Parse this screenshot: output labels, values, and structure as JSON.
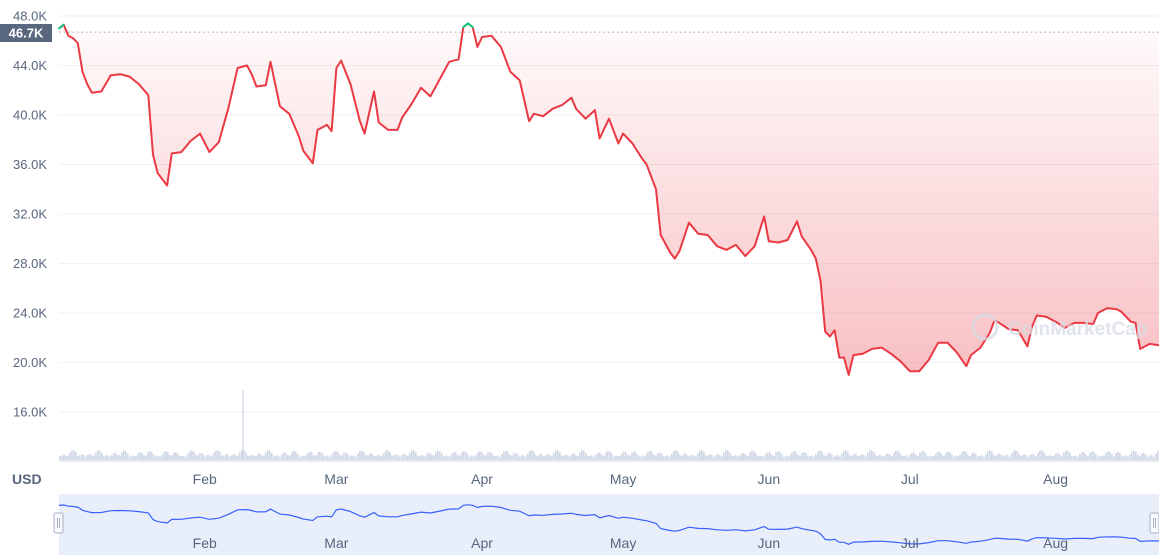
{
  "currency_label": "USD",
  "watermark": "CoinMarketCap",
  "current_price_badge": "46.7K",
  "colors": {
    "line_down": "#ea3943",
    "line_up": "#16c784",
    "area_fill": "#ea3943",
    "grid": "#eff2f5",
    "axis_text": "#58667e",
    "volume": "#cfd6e4",
    "navigator_bg": "#e9eefb",
    "navigator_line": "#3861fb",
    "badge_bg": "#58667e",
    "badge_text": "#ffffff"
  },
  "chart_data": {
    "type": "area",
    "title": "",
    "ylabel": "",
    "xlabel": "",
    "ylim": [
      12000,
      48000
    ],
    "yticks": [
      16000,
      20000,
      24000,
      28000,
      32000,
      36000,
      40000,
      44000,
      48000
    ],
    "ytick_labels": [
      "16.0K",
      "20.0K",
      "24.0K",
      "28.0K",
      "32.0K",
      "36.0K",
      "40.0K",
      "44.0K",
      "48.0K"
    ],
    "x_range": [
      "2022-01-01",
      "2022-08-23"
    ],
    "xticks": [
      "2022-02-01",
      "2022-03-01",
      "2022-04-01",
      "2022-05-01",
      "2022-06-01",
      "2022-07-01",
      "2022-08-01"
    ],
    "xtick_labels": [
      "Feb",
      "Mar",
      "Apr",
      "May",
      "Jun",
      "Jul",
      "Aug"
    ],
    "reference_price": 46700,
    "series": [
      {
        "values_unit": "USD",
        "points": [
          [
            "2022-01-01",
            47000
          ],
          [
            "2022-01-02",
            47300
          ],
          [
            "2022-01-03",
            46400
          ],
          [
            "2022-01-04",
            46200
          ],
          [
            "2022-01-05",
            45800
          ],
          [
            "2022-01-06",
            43500
          ],
          [
            "2022-01-07",
            42500
          ],
          [
            "2022-01-08",
            41800
          ],
          [
            "2022-01-10",
            41900
          ],
          [
            "2022-01-12",
            43200
          ],
          [
            "2022-01-14",
            43300
          ],
          [
            "2022-01-16",
            43100
          ],
          [
            "2022-01-18",
            42500
          ],
          [
            "2022-01-20",
            41600
          ],
          [
            "2022-01-21",
            36800
          ],
          [
            "2022-01-22",
            35300
          ],
          [
            "2022-01-24",
            34300
          ],
          [
            "2022-01-25",
            36900
          ],
          [
            "2022-01-27",
            37000
          ],
          [
            "2022-01-29",
            37900
          ],
          [
            "2022-01-31",
            38500
          ],
          [
            "2022-02-02",
            37000
          ],
          [
            "2022-02-04",
            37800
          ],
          [
            "2022-02-06",
            40500
          ],
          [
            "2022-02-08",
            43800
          ],
          [
            "2022-02-10",
            44000
          ],
          [
            "2022-02-11",
            43300
          ],
          [
            "2022-02-12",
            42300
          ],
          [
            "2022-02-14",
            42400
          ],
          [
            "2022-02-15",
            44300
          ],
          [
            "2022-02-17",
            40700
          ],
          [
            "2022-02-19",
            40100
          ],
          [
            "2022-02-21",
            38300
          ],
          [
            "2022-02-22",
            37100
          ],
          [
            "2022-02-24",
            36100
          ],
          [
            "2022-02-25",
            38800
          ],
          [
            "2022-02-27",
            39200
          ],
          [
            "2022-02-28",
            38700
          ],
          [
            "2022-03-01",
            43800
          ],
          [
            "2022-03-02",
            44400
          ],
          [
            "2022-03-04",
            42500
          ],
          [
            "2022-03-06",
            39500
          ],
          [
            "2022-03-07",
            38500
          ],
          [
            "2022-03-09",
            41900
          ],
          [
            "2022-03-10",
            39400
          ],
          [
            "2022-03-12",
            38800
          ],
          [
            "2022-03-14",
            38800
          ],
          [
            "2022-03-15",
            39800
          ],
          [
            "2022-03-17",
            40900
          ],
          [
            "2022-03-19",
            42200
          ],
          [
            "2022-03-21",
            41500
          ],
          [
            "2022-03-23",
            42900
          ],
          [
            "2022-03-25",
            44300
          ],
          [
            "2022-03-27",
            44500
          ],
          [
            "2022-03-28",
            47100
          ],
          [
            "2022-03-29",
            47400
          ],
          [
            "2022-03-30",
            47100
          ],
          [
            "2022-03-31",
            45500
          ],
          [
            "2022-04-01",
            46300
          ],
          [
            "2022-04-03",
            46400
          ],
          [
            "2022-04-05",
            45500
          ],
          [
            "2022-04-07",
            43500
          ],
          [
            "2022-04-09",
            42800
          ],
          [
            "2022-04-11",
            39500
          ],
          [
            "2022-04-12",
            40100
          ],
          [
            "2022-04-14",
            39900
          ],
          [
            "2022-04-16",
            40500
          ],
          [
            "2022-04-18",
            40800
          ],
          [
            "2022-04-20",
            41400
          ],
          [
            "2022-04-21",
            40500
          ],
          [
            "2022-04-23",
            39700
          ],
          [
            "2022-04-25",
            40400
          ],
          [
            "2022-04-26",
            38100
          ],
          [
            "2022-04-28",
            39700
          ],
          [
            "2022-04-30",
            37700
          ],
          [
            "2022-05-01",
            38500
          ],
          [
            "2022-05-03",
            37700
          ],
          [
            "2022-05-05",
            36500
          ],
          [
            "2022-05-06",
            36000
          ],
          [
            "2022-05-08",
            34000
          ],
          [
            "2022-05-09",
            30300
          ],
          [
            "2022-05-11",
            28900
          ],
          [
            "2022-05-12",
            28400
          ],
          [
            "2022-05-13",
            29000
          ],
          [
            "2022-05-15",
            31300
          ],
          [
            "2022-05-17",
            30400
          ],
          [
            "2022-05-19",
            30300
          ],
          [
            "2022-05-21",
            29400
          ],
          [
            "2022-05-23",
            29100
          ],
          [
            "2022-05-25",
            29500
          ],
          [
            "2022-05-27",
            28600
          ],
          [
            "2022-05-29",
            29400
          ],
          [
            "2022-05-31",
            31800
          ],
          [
            "2022-06-01",
            29800
          ],
          [
            "2022-06-03",
            29700
          ],
          [
            "2022-06-05",
            29900
          ],
          [
            "2022-06-07",
            31400
          ],
          [
            "2022-06-08",
            30200
          ],
          [
            "2022-06-10",
            29100
          ],
          [
            "2022-06-11",
            28400
          ],
          [
            "2022-06-12",
            26600
          ],
          [
            "2022-06-13",
            22500
          ],
          [
            "2022-06-14",
            22100
          ],
          [
            "2022-06-15",
            22600
          ],
          [
            "2022-06-16",
            20400
          ],
          [
            "2022-06-17",
            20400
          ],
          [
            "2022-06-18",
            19000
          ],
          [
            "2022-06-19",
            20600
          ],
          [
            "2022-06-21",
            20700
          ],
          [
            "2022-06-23",
            21100
          ],
          [
            "2022-06-25",
            21200
          ],
          [
            "2022-06-27",
            20700
          ],
          [
            "2022-06-29",
            20100
          ],
          [
            "2022-07-01",
            19300
          ],
          [
            "2022-07-03",
            19300
          ],
          [
            "2022-07-05",
            20200
          ],
          [
            "2022-07-07",
            21600
          ],
          [
            "2022-07-09",
            21600
          ],
          [
            "2022-07-11",
            20800
          ],
          [
            "2022-07-13",
            19700
          ],
          [
            "2022-07-14",
            20600
          ],
          [
            "2022-07-16",
            21200
          ],
          [
            "2022-07-18",
            22400
          ],
          [
            "2022-07-19",
            23400
          ],
          [
            "2022-07-20",
            23200
          ],
          [
            "2022-07-22",
            22700
          ],
          [
            "2022-07-24",
            22600
          ],
          [
            "2022-07-26",
            21300
          ],
          [
            "2022-07-27",
            22900
          ],
          [
            "2022-07-28",
            23800
          ],
          [
            "2022-07-30",
            23700
          ],
          [
            "2022-08-01",
            23300
          ],
          [
            "2022-08-03",
            22800
          ],
          [
            "2022-08-05",
            23200
          ],
          [
            "2022-08-07",
            23200
          ],
          [
            "2022-08-09",
            23100
          ],
          [
            "2022-08-10",
            24000
          ],
          [
            "2022-08-12",
            24400
          ],
          [
            "2022-08-14",
            24300
          ],
          [
            "2022-08-15",
            24100
          ],
          [
            "2022-08-17",
            23300
          ],
          [
            "2022-08-18",
            23200
          ],
          [
            "2022-08-19",
            21100
          ],
          [
            "2022-08-21",
            21500
          ],
          [
            "2022-08-23",
            21400
          ]
        ]
      }
    ],
    "navigator": {
      "xtick_labels": [
        "Feb",
        "Mar",
        "Apr",
        "May",
        "Jun",
        "Jul",
        "Aug"
      ]
    }
  }
}
